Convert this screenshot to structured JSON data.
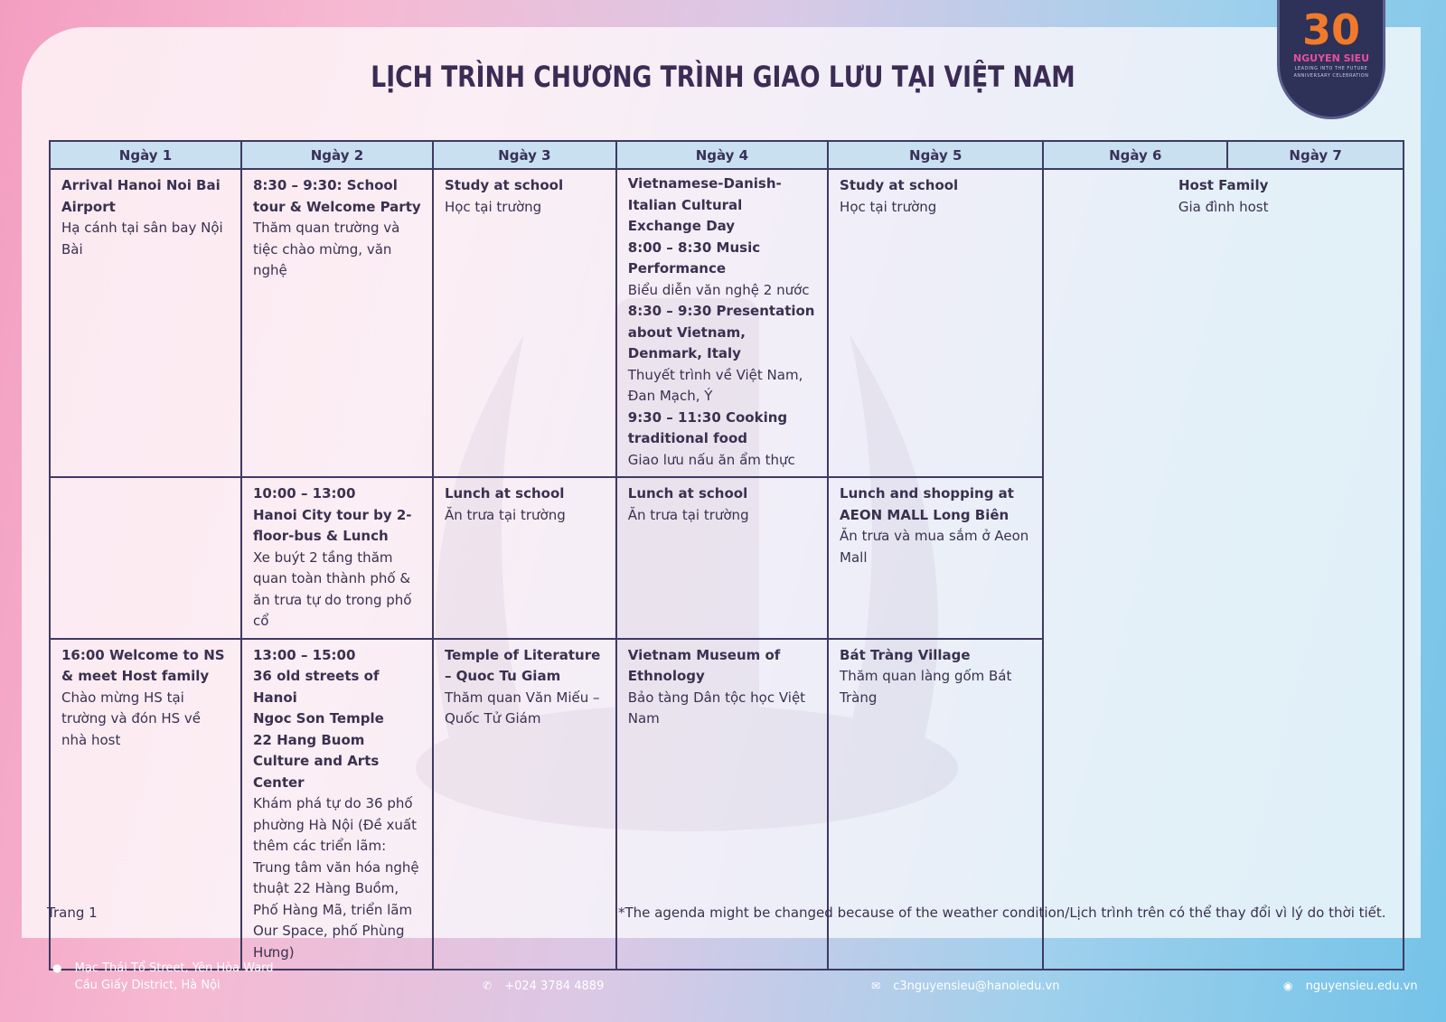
{
  "title": "LỊCH TRÌNH CHƯƠNG TRÌNH GIAO LƯU TẠI VIỆT NAM",
  "logo": {
    "number": "30",
    "name": "NGUYEN SIEU",
    "tagline": "LEADING INTO THE FUTURE",
    "sub": "ANNIVERSARY CELEBRATION"
  },
  "headers": [
    "Ngày 1",
    "Ngày 2",
    "Ngày 3",
    "Ngày 4",
    "Ngày 5",
    "Ngày 6",
    "Ngày 7"
  ],
  "row1": {
    "d1": {
      "en": "Arrival Hanoi Noi Bai Airport",
      "vi": "Hạ cánh tại sân bay Nội Bài"
    },
    "d2": {
      "en": "8:30 – 9:30: School tour & Welcome Party",
      "vi": "Thăm quan trường và tiệc chào mừng, văn nghệ"
    },
    "d3": {
      "en": "Study at school",
      "vi": "Học tại trường"
    },
    "d4": {
      "h1": "Vietnamese-Danish-Italian Cultural Exchange Day",
      "h2": "8:00 – 8:30 Music Performance",
      "v2": "Biểu diễn văn nghệ 2 nước",
      "h3": "8:30 – 9:30 Presentation about Vietnam, Denmark, Italy",
      "v3": "Thuyết trình về Việt Nam, Đan Mạch, Ý",
      "h4": "9:30 – 11:30 Cooking traditional food",
      "v4": "Giao lưu nấu ăn ẩm thực"
    },
    "d5": {
      "en": "Study at school",
      "vi": "Học tại trường"
    }
  },
  "host": {
    "en": "Host Family",
    "vi": "Gia đình host"
  },
  "row2": {
    "d2": {
      "time": "10:00 – 13:00",
      "en": "Hanoi City tour by 2-floor-bus & Lunch",
      "vi": "Xe buýt 2 tầng thăm quan toàn thành phố & ăn trưa tự do trong phố cổ"
    },
    "d3": {
      "en": "Lunch at school",
      "vi": "Ăn trưa tại trường"
    },
    "d4": {
      "en": "Lunch at school",
      "vi": "Ăn trưa tại trường"
    },
    "d5": {
      "en": "Lunch and shopping at AEON MALL Long Biên",
      "vi": "Ăn trưa và mua sắm ở Aeon Mall"
    }
  },
  "row3": {
    "d1": {
      "en": "16:00 Welcome to NS & meet Host family",
      "vi": "Chào mừng HS tại trường và đón HS về nhà host"
    },
    "d2": {
      "h1": "13:00 – 15:00",
      "h2": "36 old streets of Hanoi",
      "h3": "Ngoc Son Temple",
      "h4": "22 Hang Buom Culture and Arts Center",
      "vi": "Khám phá tự do 36 phố phường Hà Nội (Đề xuất thêm các triển lãm: Trung tâm văn hóa nghệ thuật 22 Hàng Buồm, Phố Hàng Mã, triển lãm Our Space, phố Phùng Hưng)"
    },
    "d3": {
      "en": "Temple of Literature – Quoc Tu Giam",
      "vi": "Thăm quan Văn Miếu – Quốc Tử Giám"
    },
    "d4": {
      "en": "Vietnam Museum of Ethnology",
      "vi": "Bảo tàng Dân tộc học Việt Nam"
    },
    "d5": {
      "en": "Bát Tràng Village",
      "vi": "Thăm quan làng gốm Bát Tràng"
    }
  },
  "page_label": "Trang 1",
  "note": "*The agenda might be changed because of the weather condition/Lịch trình trên có thể thay đổi vì lý do thời tiết.",
  "contact": {
    "address1": "Mạc Thái Tổ Street, Yên Hòa Ward",
    "address2": "Cầu Giấy District, Hà Nội",
    "phone": "+024 3784 4889",
    "email": "c3nguyensieu@hanoiedu.vn",
    "web": "nguyensieu.edu.vn"
  },
  "icons": {
    "address": "map-pin-icon",
    "phone": "phone-icon",
    "email": "mail-icon",
    "web": "globe-icon"
  }
}
